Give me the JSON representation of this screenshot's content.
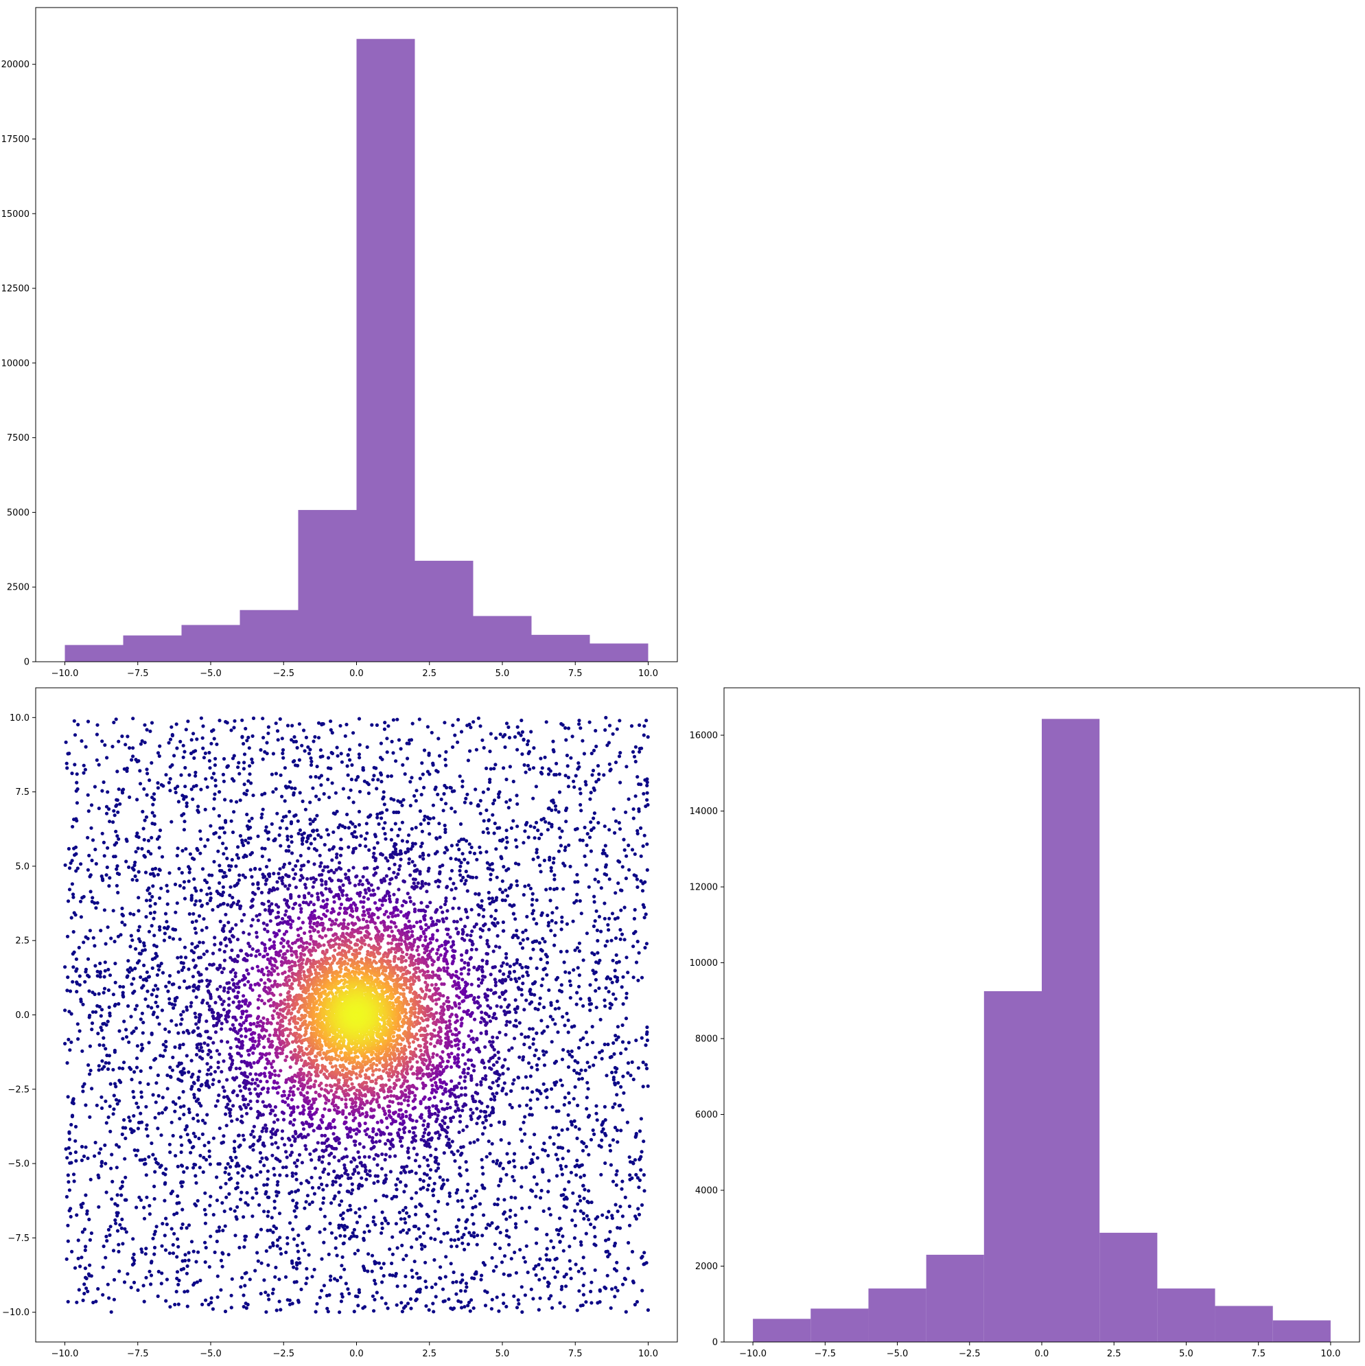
{
  "chart_data": [
    {
      "panel": "top-left",
      "type": "bar",
      "bin_edges": [
        -10,
        -8,
        -6,
        -4,
        -2,
        0,
        2,
        4,
        6,
        8,
        10
      ],
      "values": [
        560,
        880,
        1230,
        1730,
        5080,
        20850,
        3380,
        1530,
        900,
        610
      ],
      "xlim": [
        -11,
        11
      ],
      "ylim": [
        0,
        21900
      ],
      "xticks": [
        -10,
        -7.5,
        -5,
        -2.5,
        0,
        2.5,
        5,
        7.5,
        10
      ],
      "xtick_labels": [
        "−10.0",
        "−7.5",
        "−5.0",
        "−2.5",
        "0.0",
        "2.5",
        "5.0",
        "7.5",
        "10.0"
      ],
      "yticks": [
        0,
        2500,
        5000,
        7500,
        10000,
        12500,
        15000,
        17500,
        20000
      ],
      "ytick_labels": [
        "0",
        "2500",
        "5000",
        "7500",
        "10000",
        "12500",
        "15000",
        "17500",
        "20000"
      ],
      "color": "#9467bd",
      "grid": false
    },
    {
      "panel": "bottom-left",
      "type": "scatter",
      "description_of_points": "about 10000 points uniformly spread over [-10,10]x[-10,10] plus a dense cluster centred at (0,0); colour by local density, dark indigo (low) to yellow (high)",
      "x_range": [
        -10,
        10
      ],
      "y_range": [
        -10,
        10
      ],
      "cluster_center": [
        0,
        0
      ],
      "xlim": [
        -11,
        11
      ],
      "ylim": [
        -11,
        11
      ],
      "xticks": [
        -10,
        -7.5,
        -5,
        -2.5,
        0,
        2.5,
        5,
        7.5,
        10
      ],
      "xtick_labels": [
        "−10.0",
        "−7.5",
        "−5.0",
        "−2.5",
        "0.0",
        "2.5",
        "5.0",
        "7.5",
        "10.0"
      ],
      "yticks": [
        -10,
        -7.5,
        -5,
        -2.5,
        0,
        2.5,
        5,
        7.5,
        10
      ],
      "ytick_labels": [
        "−10.0",
        "−7.5",
        "−5.0",
        "−2.5",
        "0.0",
        "2.5",
        "5.0",
        "7.5",
        "10.0"
      ],
      "colormap": [
        "#0d0887",
        "#6a00a8",
        "#b12a90",
        "#e16462",
        "#fca636",
        "#f0f921"
      ],
      "grid": false
    },
    {
      "panel": "bottom-right",
      "type": "bar",
      "bin_edges": [
        -10,
        -8,
        -6,
        -4,
        -2,
        0,
        2,
        4,
        6,
        8,
        10
      ],
      "values": [
        610,
        880,
        1410,
        2300,
        9250,
        16430,
        2880,
        1410,
        950,
        570
      ],
      "xlim": [
        -11,
        11
      ],
      "ylim": [
        0,
        17250
      ],
      "xticks": [
        -10,
        -7.5,
        -5,
        -2.5,
        0,
        2.5,
        5,
        7.5,
        10
      ],
      "xtick_labels": [
        "−10.0",
        "−7.5",
        "−5.0",
        "−2.5",
        "0.0",
        "2.5",
        "5.0",
        "7.5",
        "10.0"
      ],
      "yticks": [
        0,
        2000,
        4000,
        6000,
        8000,
        10000,
        12000,
        14000,
        16000
      ],
      "ytick_labels": [
        "0",
        "2000",
        "4000",
        "6000",
        "8000",
        "10000",
        "12000",
        "14000",
        "16000"
      ],
      "color": "#9467bd",
      "grid": false
    }
  ]
}
